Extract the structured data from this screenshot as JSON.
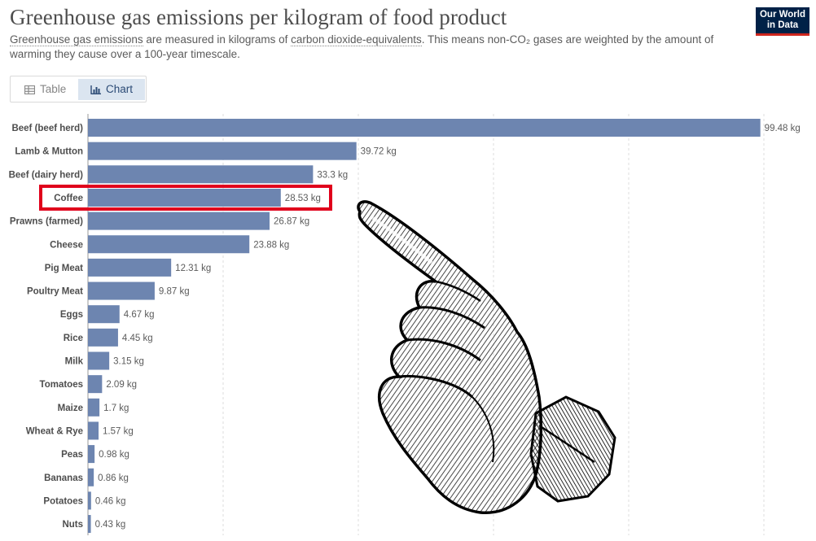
{
  "header": {
    "title": "Greenhouse gas emissions per kilogram of food product",
    "subtitle_link1": "Greenhouse gas emissions",
    "subtitle_text1": " are measured in kilograms of ",
    "subtitle_link2": "carbon dioxide-equivalents",
    "subtitle_text2": ". This means non-CO₂ gases are weighted by the amount of warming they cause over a 100-year timescale."
  },
  "logo": {
    "line1": "Our World",
    "line2": "in Data"
  },
  "tabs": {
    "table_label": "Table",
    "chart_label": "Chart",
    "active": "Chart",
    "table_icon": "table-icon",
    "chart_icon": "bar-chart-icon"
  },
  "colors": {
    "bar": "#6d85b0",
    "highlight": "#e0001b",
    "logo_bg": "#002147",
    "logo_accent": "#ce261e"
  },
  "chart_data": {
    "type": "bar",
    "orientation": "horizontal",
    "categories": [
      "Beef (beef herd)",
      "Lamb & Mutton",
      "Beef (dairy herd)",
      "Coffee",
      "Prawns (farmed)",
      "Cheese",
      "Pig Meat",
      "Poultry Meat",
      "Eggs",
      "Rice",
      "Milk",
      "Tomatoes",
      "Maize",
      "Wheat & Rye",
      "Peas",
      "Bananas",
      "Potatoes",
      "Nuts"
    ],
    "values": [
      99.48,
      39.72,
      33.3,
      28.53,
      26.87,
      23.88,
      12.31,
      9.87,
      4.67,
      4.45,
      3.15,
      2.09,
      1.7,
      1.57,
      0.98,
      0.86,
      0.46,
      0.43
    ],
    "value_labels": [
      "99.48 kg",
      "39.72 kg",
      "33.3 kg",
      "28.53 kg",
      "26.87 kg",
      "23.88 kg",
      "12.31 kg",
      "9.87 kg",
      "4.67 kg",
      "4.45 kg",
      "3.15 kg",
      "2.09 kg",
      "1.7 kg",
      "1.57 kg",
      "0.98 kg",
      "0.86 kg",
      "0.46 kg",
      "0.43 kg"
    ],
    "unit": "kg",
    "xlim": [
      0,
      100
    ],
    "gridlines": [
      0,
      20,
      40,
      60,
      80,
      100
    ],
    "highlighted_category": "Coffee"
  },
  "overlay": {
    "icon": "pointing-hand-icon"
  }
}
